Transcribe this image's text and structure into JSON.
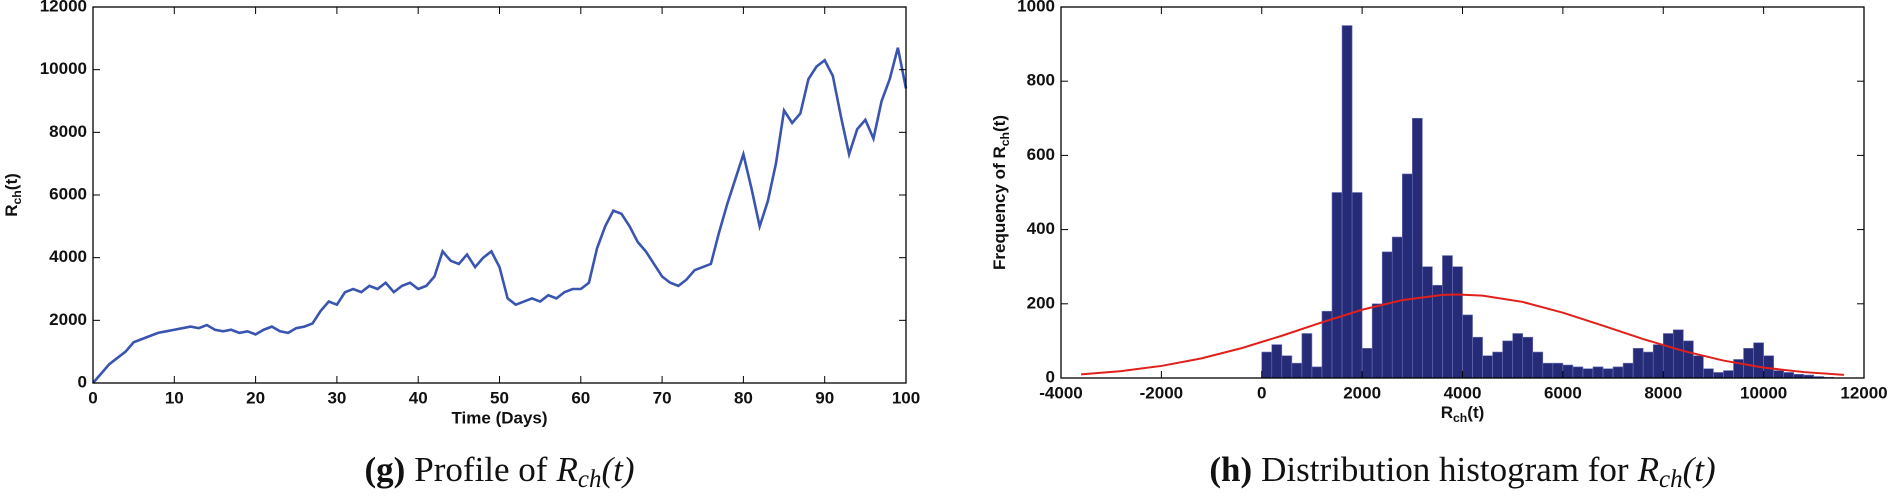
{
  "chart_data": [
    {
      "type": "line",
      "xlabel": "Time (Days)",
      "ylabel": {
        "text": "R",
        "sub": "ch",
        "tail": "(t)"
      },
      "caption": {
        "label": "(g)",
        "text": "Profile of",
        "var": "R",
        "sub": "ch",
        "tail": "(t)"
      },
      "color": "#3a55b0",
      "x": [
        0,
        1,
        2,
        3,
        4,
        5,
        6,
        7,
        8,
        9,
        10,
        11,
        12,
        13,
        14,
        15,
        16,
        17,
        18,
        19,
        20,
        21,
        22,
        23,
        24,
        25,
        26,
        27,
        28,
        29,
        30,
        31,
        32,
        33,
        34,
        35,
        36,
        37,
        38,
        39,
        40,
        41,
        42,
        43,
        44,
        45,
        46,
        47,
        48,
        49,
        50,
        51,
        52,
        53,
        54,
        55,
        56,
        57,
        58,
        59,
        60,
        61,
        62,
        63,
        64,
        65,
        66,
        67,
        68,
        69,
        70,
        71,
        72,
        73,
        74,
        75,
        76,
        77,
        78,
        79,
        80,
        81,
        82,
        83,
        84,
        85,
        86,
        87,
        88,
        89,
        90,
        91,
        92,
        93,
        94,
        95,
        96,
        97,
        98,
        99,
        100
      ],
      "values": [
        0,
        300,
        600,
        800,
        1000,
        1300,
        1400,
        1500,
        1600,
        1650,
        1700,
        1750,
        1800,
        1750,
        1850,
        1700,
        1650,
        1700,
        1600,
        1650,
        1550,
        1700,
        1800,
        1650,
        1600,
        1750,
        1800,
        1900,
        2300,
        2600,
        2500,
        2900,
        3000,
        2900,
        3100,
        3000,
        3200,
        2900,
        3100,
        3200,
        3000,
        3100,
        3400,
        4200,
        3900,
        3800,
        4100,
        3700,
        4000,
        4200,
        3700,
        2700,
        2500,
        2600,
        2700,
        2600,
        2800,
        2700,
        2900,
        3000,
        3000,
        3200,
        4300,
        5000,
        5500,
        5400,
        5000,
        4500,
        4200,
        3800,
        3400,
        3200,
        3100,
        3300,
        3600,
        3700,
        3800,
        4800,
        5700,
        6500,
        7300,
        6200,
        5000,
        5800,
        7000,
        8700,
        8300,
        8600,
        9700,
        10100,
        10300,
        9800,
        8500,
        7300,
        8100,
        8400,
        7800,
        9000,
        9700,
        10700,
        9400
      ],
      "xlim": [
        0,
        100
      ],
      "xticks": [
        0,
        10,
        20,
        30,
        40,
        50,
        60,
        70,
        80,
        90,
        100
      ],
      "ylim": [
        0,
        12000
      ],
      "yticks": [
        0,
        2000,
        4000,
        6000,
        8000,
        10000,
        12000
      ]
    },
    {
      "type": "histogram",
      "xlabel": {
        "text": "R",
        "sub": "ch",
        "tail": "(t)"
      },
      "ylabel": {
        "text": "Frequency of R",
        "sub": "ch",
        "tail": "(t)"
      },
      "caption": {
        "label": "(h)",
        "text": "Distribution histogram for",
        "var": "R",
        "sub": "ch",
        "tail": "(t)"
      },
      "color": "#262b78",
      "bins": [
        0,
        200,
        400,
        600,
        800,
        1000,
        1200,
        1400,
        1600,
        1800,
        2000,
        2200,
        2400,
        2600,
        2800,
        3000,
        3200,
        3400,
        3600,
        3800,
        4000,
        4200,
        4400,
        4600,
        4800,
        5000,
        5200,
        5400,
        5600,
        5800,
        6000,
        6200,
        6400,
        6600,
        6800,
        7000,
        7200,
        7400,
        7600,
        7800,
        8000,
        8200,
        8400,
        8600,
        8800,
        9000,
        9200,
        9400,
        9600,
        9800,
        10000,
        10200,
        10400,
        10600,
        10800,
        11000,
        11200,
        11400
      ],
      "values": [
        70,
        90,
        60,
        40,
        120,
        30,
        180,
        500,
        950,
        500,
        80,
        200,
        340,
        380,
        550,
        700,
        300,
        250,
        330,
        300,
        170,
        110,
        60,
        70,
        100,
        120,
        110,
        70,
        40,
        40,
        35,
        30,
        25,
        30,
        25,
        30,
        40,
        80,
        70,
        90,
        120,
        130,
        100,
        60,
        25,
        15,
        20,
        50,
        80,
        95,
        60,
        20,
        15,
        10,
        8,
        4,
        2
      ],
      "lines": [
        {
          "color": "#e0201b",
          "x": [
            -3600,
            -2800,
            -2000,
            -1200,
            -400,
            400,
            1200,
            2000,
            2800,
            3600,
            3900,
            4400,
            5200,
            6000,
            6800,
            7600,
            8400,
            9200,
            10000,
            10800,
            11600
          ],
          "values": [
            9.9,
            18.6,
            32.5,
            53,
            80.6,
            113.9,
            150,
            184,
            210,
            224,
            225,
            222,
            205,
            176,
            141,
            105,
            73,
            47,
            28,
            16,
            8.3
          ]
        }
      ],
      "xlim": [
        -4000,
        12000
      ],
      "xticks": [
        -4000,
        -2000,
        0,
        2000,
        4000,
        6000,
        8000,
        10000,
        12000
      ],
      "ylim": [
        0,
        1000
      ],
      "yticks": [
        0,
        200,
        400,
        600,
        800,
        1000
      ]
    }
  ]
}
